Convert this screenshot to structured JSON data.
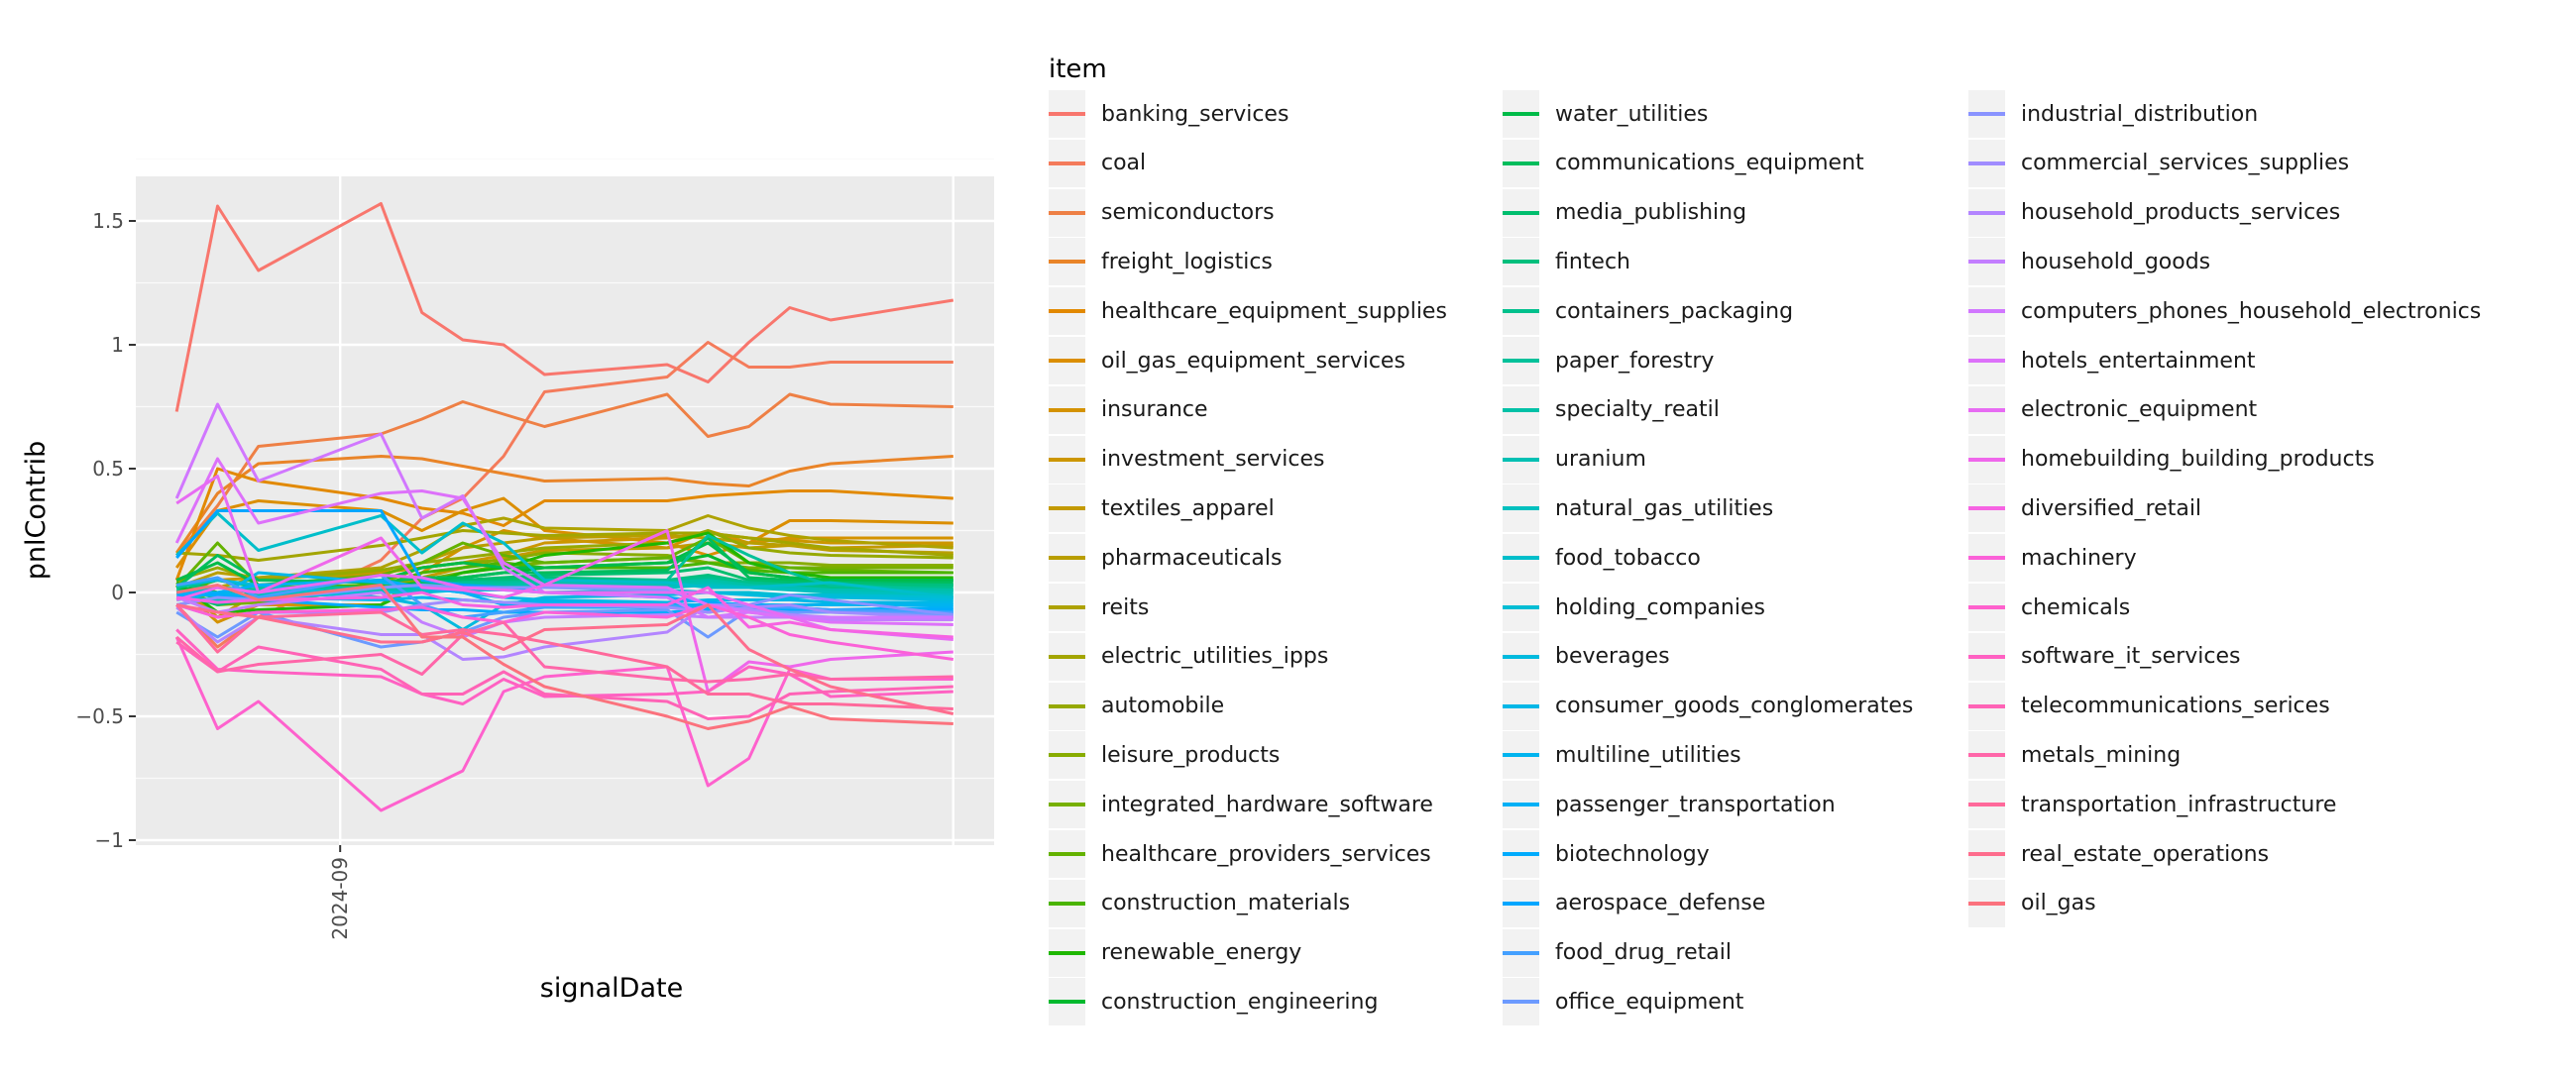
{
  "chart_data": {
    "type": "line",
    "title": "",
    "xlabel": "signalDate",
    "ylabel": "pnlContrib",
    "ylim": [
      -1.02,
      1.68
    ],
    "xlim": [
      "2024-07-28",
      "2024-12-22"
    ],
    "yticks": [
      {
        "v": 1.5,
        "label": "1.5"
      },
      {
        "v": 1,
        "label": "1"
      },
      {
        "v": 0.5,
        "label": "0.5"
      },
      {
        "v": 0,
        "label": "0"
      },
      {
        "v": -0.5,
        "label": "−0.5"
      },
      {
        "v": -1,
        "label": "−1"
      }
    ],
    "xticks": [
      {
        "v": "2024-09-01",
        "label": "2024-09"
      }
    ],
    "grid": true,
    "legend_title": "item",
    "legend_position": "right",
    "x": [
      "2024-08-04",
      "2024-08-11",
      "2024-08-18",
      "2024-09-08",
      "2024-09-15",
      "2024-09-22",
      "2024-09-29",
      "2024-10-06",
      "2024-10-27",
      "2024-11-03",
      "2024-11-10",
      "2024-11-17",
      "2024-11-24",
      "2024-12-15"
    ],
    "series": [
      {
        "name": "banking_services",
        "values": [
          0.73,
          1.56,
          1.3,
          1.57,
          1.13,
          1.02,
          1.0,
          0.88,
          0.92,
          0.85,
          1.01,
          1.15,
          1.1,
          1.18
        ]
      },
      {
        "name": "coal",
        "values": [
          -0.05,
          -0.22,
          -0.1,
          0.13,
          0.3,
          0.38,
          0.55,
          0.81,
          0.87,
          1.01,
          0.91,
          0.91,
          0.93,
          0.93
        ]
      },
      {
        "name": "semiconductors",
        "values": [
          0.15,
          0.35,
          0.59,
          0.64,
          0.7,
          0.77,
          0.72,
          0.67,
          0.8,
          0.63,
          0.67,
          0.8,
          0.76,
          0.75
        ]
      },
      {
        "name": "freight_logistics",
        "values": [
          0.16,
          0.4,
          0.52,
          0.55,
          0.54,
          0.51,
          0.48,
          0.45,
          0.46,
          0.44,
          0.43,
          0.49,
          0.52,
          0.55
        ]
      },
      {
        "name": "healthcare_equipment_supplies",
        "values": [
          0.05,
          0.5,
          0.45,
          0.38,
          0.34,
          0.32,
          0.27,
          0.37,
          0.37,
          0.39,
          0.4,
          0.41,
          0.41,
          0.38
        ]
      },
      {
        "name": "oil_gas_equipment_services",
        "values": [
          0.1,
          0.33,
          0.37,
          0.33,
          0.25,
          0.33,
          0.38,
          0.25,
          0.2,
          0.15,
          0.2,
          0.29,
          0.29,
          0.28
        ]
      },
      {
        "name": "insurance",
        "values": [
          0.03,
          -0.12,
          -0.05,
          -0.05,
          0.08,
          0.18,
          0.25,
          0.22,
          0.18,
          0.25,
          0.2,
          0.22,
          0.22,
          0.22
        ]
      },
      {
        "name": "investment_services",
        "values": [
          0.02,
          0.05,
          0.06,
          0.08,
          0.1,
          0.12,
          0.15,
          0.2,
          0.22,
          0.24,
          0.22,
          0.21,
          0.2,
          0.2
        ]
      },
      {
        "name": "textiles_apparel",
        "values": [
          0.04,
          -0.1,
          0.0,
          0.03,
          0.06,
          0.1,
          0.14,
          0.17,
          0.18,
          0.2,
          0.18,
          0.19,
          0.18,
          0.19
        ]
      },
      {
        "name": "pharmaceuticals",
        "values": [
          0.02,
          0.08,
          0.06,
          0.07,
          0.12,
          0.18,
          0.2,
          0.22,
          0.23,
          0.22,
          0.2,
          0.19,
          0.17,
          0.16
        ]
      },
      {
        "name": "reits",
        "values": [
          0.04,
          0.02,
          0.06,
          0.1,
          0.17,
          0.27,
          0.3,
          0.26,
          0.25,
          0.31,
          0.26,
          0.23,
          0.21,
          0.18
        ]
      },
      {
        "name": "electric_utilities_ipps",
        "values": [
          0.16,
          0.15,
          0.13,
          0.19,
          0.22,
          0.25,
          0.24,
          0.23,
          0.24,
          0.24,
          0.22,
          0.2,
          0.18,
          0.15
        ]
      },
      {
        "name": "automobile",
        "values": [
          0.05,
          0.1,
          0.05,
          0.09,
          0.12,
          0.14,
          0.16,
          0.18,
          0.2,
          0.25,
          0.18,
          0.16,
          0.15,
          0.14
        ]
      },
      {
        "name": "leisure_products",
        "values": [
          0.05,
          0.0,
          -0.02,
          0.04,
          0.1,
          0.12,
          0.13,
          0.16,
          0.15,
          0.12,
          0.12,
          0.12,
          0.11,
          0.11
        ]
      },
      {
        "name": "integrated_hardware_software",
        "values": [
          0.03,
          -0.05,
          -0.04,
          0.02,
          0.05,
          0.08,
          0.11,
          0.12,
          0.14,
          0.12,
          0.1,
          0.1,
          0.1,
          0.1
        ]
      },
      {
        "name": "healthcare_providers_services",
        "values": [
          0.02,
          0.2,
          0.03,
          0.07,
          0.12,
          0.2,
          0.15,
          0.12,
          0.14,
          0.22,
          0.12,
          0.1,
          0.09,
          0.08
        ]
      },
      {
        "name": "construction_materials",
        "values": [
          0.0,
          0.05,
          0.02,
          0.03,
          0.08,
          0.1,
          0.12,
          0.1,
          0.1,
          0.12,
          0.09,
          0.08,
          0.08,
          0.08
        ]
      },
      {
        "name": "renewable_energy",
        "values": [
          0.04,
          -0.08,
          -0.07,
          -0.05,
          0.03,
          0.08,
          0.1,
          0.15,
          0.2,
          0.24,
          0.12,
          0.08,
          0.06,
          0.06
        ]
      },
      {
        "name": "construction_engineering",
        "values": [
          0.02,
          0.0,
          0.01,
          0.02,
          0.04,
          0.06,
          0.08,
          0.1,
          0.12,
          0.15,
          0.08,
          0.06,
          0.05,
          0.05
        ]
      },
      {
        "name": "water_utilities",
        "values": [
          0.05,
          0.12,
          0.03,
          0.05,
          0.1,
          0.12,
          0.1,
          0.1,
          0.12,
          0.2,
          0.08,
          0.06,
          0.05,
          0.05
        ]
      },
      {
        "name": "communications_equipment",
        "values": [
          0.02,
          0.15,
          0.05,
          0.04,
          0.06,
          0.06,
          0.08,
          0.08,
          0.09,
          0.22,
          0.06,
          0.05,
          0.04,
          0.04
        ]
      },
      {
        "name": "media_publishing",
        "values": [
          0.0,
          -0.05,
          -0.02,
          0.0,
          0.04,
          0.05,
          0.06,
          0.07,
          0.08,
          0.1,
          0.05,
          0.04,
          0.04,
          0.03
        ]
      },
      {
        "name": "fintech",
        "values": [
          0.03,
          0.02,
          0.01,
          0.02,
          0.03,
          0.04,
          0.05,
          0.06,
          0.05,
          0.07,
          0.04,
          0.03,
          0.03,
          0.03
        ]
      },
      {
        "name": "containers_packaging",
        "values": [
          0.01,
          -0.02,
          0.0,
          0.01,
          0.02,
          0.03,
          0.04,
          0.05,
          0.05,
          0.06,
          0.04,
          0.03,
          0.02,
          0.02
        ]
      },
      {
        "name": "paper_forestry",
        "values": [
          0.02,
          0.05,
          0.02,
          0.02,
          0.03,
          0.04,
          0.04,
          0.04,
          0.05,
          0.23,
          0.15,
          0.08,
          0.03,
          0.01
        ]
      },
      {
        "name": "specialty_reatil",
        "values": [
          0.0,
          0.0,
          0.01,
          0.01,
          0.02,
          0.03,
          0.03,
          0.04,
          0.04,
          0.05,
          0.03,
          0.02,
          0.01,
          0.01
        ]
      },
      {
        "name": "uranium",
        "values": [
          -0.02,
          -0.03,
          -0.01,
          0.0,
          0.01,
          0.02,
          0.02,
          0.03,
          0.03,
          0.04,
          0.02,
          0.02,
          0.01,
          0.0
        ]
      },
      {
        "name": "natural_gas_utilities",
        "values": [
          0.0,
          0.02,
          0.0,
          0.0,
          0.01,
          0.01,
          0.02,
          0.02,
          0.02,
          0.03,
          0.02,
          0.01,
          0.0,
          -0.01
        ]
      },
      {
        "name": "food_tobacco",
        "values": [
          0.15,
          0.32,
          0.17,
          0.31,
          0.16,
          0.28,
          0.2,
          0.05,
          0.04,
          0.02,
          0.02,
          0.03,
          0.04,
          -0.02
        ]
      },
      {
        "name": "holding_companies",
        "values": [
          -0.02,
          -0.04,
          -0.02,
          0.0,
          0.0,
          0.01,
          0.01,
          0.0,
          0.01,
          0.0,
          0.0,
          -0.01,
          -0.01,
          -0.02
        ]
      },
      {
        "name": "beverages",
        "values": [
          0.03,
          0.05,
          0.03,
          -0.02,
          -0.05,
          -0.15,
          -0.05,
          -0.02,
          -0.01,
          0.0,
          -0.01,
          -0.02,
          -0.02,
          -0.03
        ]
      },
      {
        "name": "consumer_goods_conglomerates",
        "values": [
          -0.05,
          -0.02,
          0.08,
          0.04,
          0.02,
          0.0,
          -0.02,
          -0.03,
          -0.04,
          -0.03,
          -0.03,
          -0.03,
          -0.04,
          -0.04
        ]
      },
      {
        "name": "multiline_utilities",
        "values": [
          -0.03,
          0.0,
          -0.02,
          -0.03,
          -0.02,
          -0.03,
          -0.04,
          -0.04,
          -0.05,
          -0.05,
          -0.05,
          -0.05,
          -0.05,
          -0.05
        ]
      },
      {
        "name": "passenger_transportation",
        "values": [
          0.0,
          0.0,
          0.03,
          0.05,
          0.02,
          0.0,
          -0.05,
          -0.06,
          -0.06,
          -0.06,
          -0.06,
          -0.07,
          -0.07,
          -0.06
        ]
      },
      {
        "name": "biotechnology",
        "values": [
          -0.01,
          -0.01,
          -0.03,
          -0.06,
          -0.07,
          -0.07,
          -0.08,
          -0.08,
          -0.08,
          -0.07,
          -0.07,
          -0.07,
          -0.07,
          -0.07
        ]
      },
      {
        "name": "aerospace_defense",
        "values": [
          0.14,
          0.33,
          0.33,
          0.33,
          0.05,
          0.03,
          0.02,
          0.0,
          -0.02,
          -0.04,
          -0.05,
          -0.06,
          -0.07,
          -0.08
        ]
      },
      {
        "name": "food_drug_retail",
        "values": [
          0.03,
          0.06,
          -0.02,
          0.07,
          -0.05,
          -0.1,
          -0.08,
          -0.06,
          -0.05,
          -0.08,
          -0.06,
          -0.06,
          -0.07,
          -0.08
        ]
      },
      {
        "name": "office_equipment",
        "values": [
          -0.08,
          -0.18,
          -0.08,
          -0.22,
          -0.2,
          -0.16,
          -0.1,
          -0.08,
          -0.07,
          -0.18,
          -0.07,
          -0.08,
          -0.08,
          -0.09
        ]
      },
      {
        "name": "industrial_distribution",
        "values": [
          -0.05,
          -0.02,
          -0.03,
          0.02,
          0.03,
          0.02,
          0.02,
          0.02,
          0.01,
          -0.05,
          -0.05,
          -0.01,
          -0.03,
          -0.09
        ]
      },
      {
        "name": "commercial_services_supplies",
        "values": [
          -0.05,
          -0.1,
          -0.08,
          -0.08,
          -0.05,
          -0.03,
          -0.04,
          -0.05,
          -0.06,
          -0.08,
          -0.06,
          -0.05,
          -0.08,
          -0.1
        ]
      },
      {
        "name": "household_products_services",
        "values": [
          -0.06,
          -0.2,
          -0.1,
          -0.17,
          -0.17,
          -0.27,
          -0.26,
          -0.22,
          -0.16,
          -0.05,
          -0.07,
          -0.09,
          -0.1,
          -0.1
        ]
      },
      {
        "name": "household_goods",
        "values": [
          -0.02,
          -0.08,
          -0.05,
          0.0,
          -0.12,
          -0.18,
          -0.12,
          -0.1,
          -0.09,
          -0.1,
          -0.1,
          -0.1,
          -0.11,
          -0.11
        ]
      },
      {
        "name": "computers_phones_household_electronics",
        "values": [
          0.38,
          0.76,
          0.45,
          0.64,
          0.3,
          0.39,
          0.1,
          0.0,
          -0.02,
          -0.1,
          -0.08,
          -0.1,
          -0.1,
          -0.1
        ]
      },
      {
        "name": "hotels_entertainment",
        "values": [
          0.2,
          0.54,
          0.28,
          0.4,
          0.41,
          0.38,
          0.12,
          0.03,
          0.02,
          -0.05,
          -0.08,
          -0.1,
          -0.12,
          -0.13
        ]
      },
      {
        "name": "electronic_equipment",
        "values": [
          0.36,
          0.47,
          0.0,
          0.07,
          0.06,
          0.02,
          0.01,
          0.0,
          0.0,
          0.0,
          -0.05,
          -0.1,
          -0.15,
          -0.19
        ]
      },
      {
        "name": "homebuilding_building_products",
        "values": [
          -0.03,
          0.02,
          0.0,
          0.22,
          0.02,
          0.01,
          -0.02,
          0.03,
          0.25,
          -0.4,
          -0.28,
          -0.3,
          -0.27,
          -0.24
        ]
      },
      {
        "name": "diversified_retail",
        "values": [
          -0.02,
          -0.04,
          -0.03,
          -0.02,
          0.0,
          -0.05,
          -0.06,
          -0.05,
          -0.05,
          0.02,
          -0.14,
          -0.12,
          -0.15,
          -0.18
        ]
      },
      {
        "name": "machinery",
        "values": [
          -0.05,
          -0.1,
          -0.08,
          -0.07,
          -0.06,
          -0.1,
          -0.12,
          -0.08,
          -0.1,
          -0.05,
          -0.1,
          -0.17,
          -0.2,
          -0.27
        ]
      },
      {
        "name": "chemicals",
        "values": [
          -0.18,
          -0.55,
          -0.44,
          -0.88,
          -0.8,
          -0.72,
          -0.4,
          -0.34,
          -0.3,
          -0.78,
          -0.67,
          -0.31,
          -0.35,
          -0.35
        ]
      },
      {
        "name": "software_it_services",
        "values": [
          -0.15,
          -0.31,
          -0.32,
          -0.34,
          -0.41,
          -0.45,
          -0.35,
          -0.42,
          -0.41,
          -0.4,
          -0.3,
          -0.33,
          -0.42,
          -0.4
        ]
      },
      {
        "name": "telecommunications_serices",
        "values": [
          -0.2,
          -0.32,
          -0.22,
          -0.31,
          -0.41,
          -0.41,
          -0.32,
          -0.41,
          -0.44,
          -0.51,
          -0.5,
          -0.41,
          -0.4,
          -0.38
        ]
      },
      {
        "name": "metals_mining",
        "values": [
          -0.18,
          -0.32,
          -0.29,
          -0.25,
          -0.33,
          -0.17,
          -0.12,
          -0.3,
          -0.35,
          -0.36,
          -0.35,
          -0.33,
          -0.35,
          -0.34
        ]
      },
      {
        "name": "transportation_infrastructure",
        "values": [
          -0.05,
          -0.24,
          -0.1,
          -0.08,
          -0.17,
          -0.15,
          -0.17,
          -0.2,
          -0.3,
          -0.41,
          -0.41,
          -0.45,
          -0.45,
          -0.47
        ]
      },
      {
        "name": "real_estate_operations",
        "values": [
          -0.05,
          -0.08,
          -0.1,
          -0.2,
          -0.2,
          -0.16,
          -0.23,
          -0.15,
          -0.13,
          -0.05,
          -0.23,
          -0.31,
          -0.38,
          -0.49
        ]
      },
      {
        "name": "oil_gas",
        "values": [
          0.0,
          0.03,
          -0.03,
          0.03,
          -0.18,
          -0.18,
          -0.29,
          -0.38,
          -0.5,
          -0.55,
          -0.52,
          -0.46,
          -0.51,
          -0.53
        ]
      }
    ]
  },
  "colors": {
    "panel_bg": "#ebebeb",
    "grid_major": "#ffffff",
    "tick_text": "#4d4d4d",
    "legend_key_bg": "#f2f2f2"
  }
}
